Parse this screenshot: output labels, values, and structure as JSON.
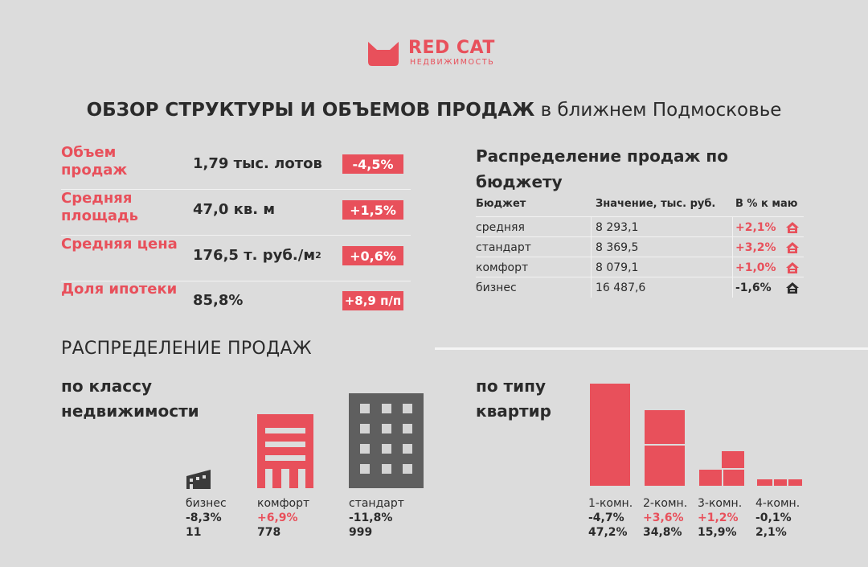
{
  "logo": {
    "name": "RED CAT",
    "subtitle": "НЕДВИЖИМОСТЬ",
    "icon": "cat-ears-icon",
    "color": "#e8505b"
  },
  "headline": {
    "bold": "ОБЗОР СТРУКТУРЫ И ОБЪЕМОВ ПРОДАЖ",
    "rest": "в ближнем Подмосковье"
  },
  "kpis": [
    {
      "label": "Объем продаж",
      "value": "1,79 тыс. лотов",
      "change": "-4,5%"
    },
    {
      "label": "Средняя площадь",
      "value": "47,0 кв. м",
      "change": "+1,5%"
    },
    {
      "label": "Средняя цена",
      "value": "176,5 т. руб./м",
      "value_sup": "2",
      "change": "+0,6%"
    },
    {
      "label": "Доля ипотеки",
      "value": "85,8%",
      "change": "+8,9 п/п"
    }
  ],
  "budget": {
    "title": "Распределение продаж по бюджету",
    "columns": [
      "Бюджет",
      "Значение, тыс. руб.",
      "В % к маю"
    ],
    "rows": [
      {
        "segment": "средняя",
        "value": "8 293,1",
        "change": "+2,1%",
        "trend": "up",
        "icon": "house-up-icon"
      },
      {
        "segment": "стандарт",
        "value": "8 369,5",
        "change": "+3,2%",
        "trend": "up",
        "icon": "house-up-icon"
      },
      {
        "segment": "комфорт",
        "value": "8 079,1",
        "change": "+1,0%",
        "trend": "up",
        "icon": "house-up-icon"
      },
      {
        "segment": "бизнес",
        "value": "16 487,6",
        "change": "-1,6%",
        "trend": "down",
        "icon": "house-down-icon"
      }
    ]
  },
  "distribution": {
    "title": "РАСПРЕДЕЛЕНИЕ ПРОДАЖ",
    "by_class": {
      "title_line1": "по классу",
      "title_line2": "недвижимости",
      "items": [
        {
          "name": "бизнес",
          "change": "-8,3%",
          "count": "11",
          "icon": "small-building-icon"
        },
        {
          "name": "комфорт",
          "change": "+6,9%",
          "count": "778",
          "icon": "red-building-icon"
        },
        {
          "name": "стандарт",
          "change": "-11,8%",
          "count": "999",
          "icon": "grey-building-icon"
        }
      ]
    },
    "by_type": {
      "title_line1": "по типу",
      "title_line2": "квартир"
    }
  },
  "chart_data": {
    "type": "bar",
    "categories": [
      "1-комн.",
      "2-комн.",
      "3-комн.",
      "4-комн."
    ],
    "values": [
      47.2,
      34.8,
      15.9,
      2.1
    ],
    "value_labels": [
      "47,2%",
      "34,8%",
      "15,9%",
      "2,1%"
    ],
    "changes": [
      "-4,7%",
      "+3,6%",
      "+1,2%",
      "-0,1%"
    ],
    "ylim": [
      0,
      47.2
    ],
    "color": "#e8505b"
  },
  "colors": {
    "accent": "#e8505b",
    "background": "#dcdcdc",
    "text": "#2b2b2b",
    "building_grey": "#5f5f5f"
  }
}
